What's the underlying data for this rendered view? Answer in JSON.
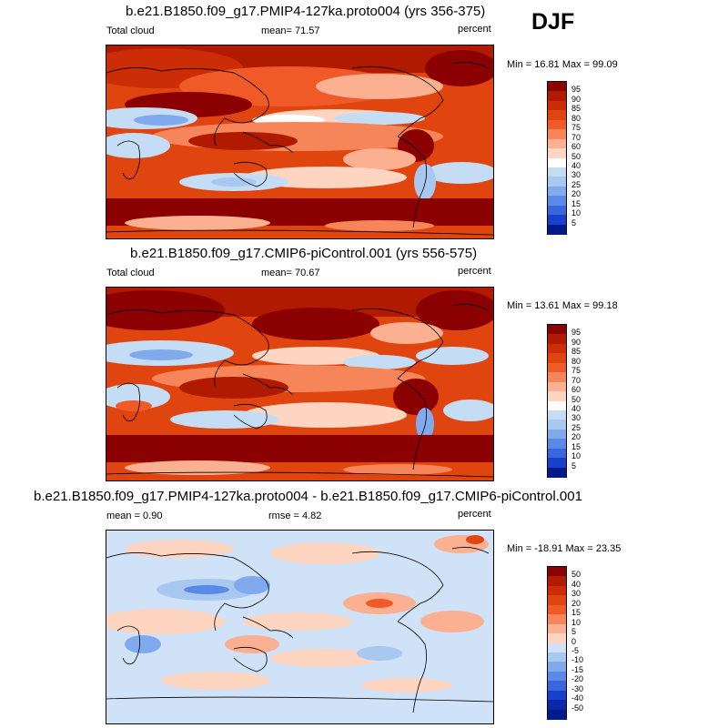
{
  "season": "DJF",
  "panels": [
    {
      "title": "b.e21.B1850.f09_g17.PMIP4-127ka.proto004 (yrs 356-375)",
      "left_label": "Total cloud",
      "center_label": "mean=  71.57",
      "right_label": "percent",
      "minmax": "Min =  16.81 Max =  99.09"
    },
    {
      "title": "b.e21.B1850.f09_g17.CMIP6-piControl.001 (yrs 556-575)",
      "left_label": "Total cloud",
      "center_label": "mean=  70.67",
      "right_label": "percent",
      "minmax": "Min =  13.61 Max =  99.18"
    },
    {
      "title": "b.e21.B1850.f09_g17.PMIP4-127ka.proto004 - b.e21.B1850.f09_g17.CMIP6-piControl.001",
      "left_label": "mean =   0.90",
      "center_label": "rmse =   4.82",
      "right_label": "percent",
      "minmax": "Min = -18.91 Max =  23.35"
    }
  ],
  "colorbars": {
    "abs": {
      "labels": [
        "95",
        "90",
        "85",
        "80",
        "75",
        "70",
        "60",
        "50",
        "40",
        "30",
        "25",
        "20",
        "15",
        "10",
        "5"
      ],
      "colors": [
        "#8b0000",
        "#b01a00",
        "#cc2c06",
        "#e0440f",
        "#f05a28",
        "#f7855a",
        "#fbb092",
        "#fdd5c0",
        "#ffffff",
        "#c5dcf5",
        "#a8c8f0",
        "#80aaeb",
        "#5a8ae6",
        "#3a66dd",
        "#1a3fc9",
        "#001a8c"
      ]
    },
    "diff": {
      "labels": [
        "50",
        "40",
        "30",
        "20",
        "15",
        "10",
        "5",
        "0",
        "-5",
        "-10",
        "-15",
        "-20",
        "-30",
        "-40",
        "-50"
      ],
      "colors": [
        "#8b0000",
        "#b01a00",
        "#cc2c06",
        "#e0440f",
        "#f05a28",
        "#f7855a",
        "#fbb092",
        "#fdd5c0",
        "#cfe2f7",
        "#a8c8f0",
        "#80aaeb",
        "#5a8ae6",
        "#3a66dd",
        "#1a3fc9",
        "#0a28a8",
        "#001a8c"
      ]
    }
  }
}
